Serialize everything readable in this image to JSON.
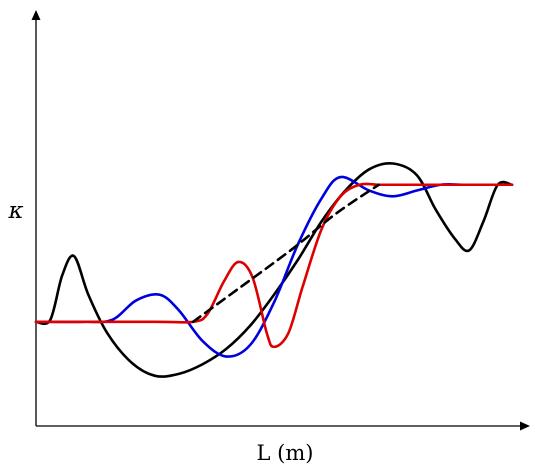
{
  "chart_data": {
    "type": "line",
    "title": "",
    "xlabel": "L (m)",
    "ylabel": "κ",
    "xlim": [
      0,
      10
    ],
    "ylim": [
      0,
      10
    ],
    "grid": false,
    "legend": "none",
    "series": [
      {
        "color": "#000000",
        "dashed": false,
        "x": [
          0.0,
          0.3,
          0.55,
          0.8,
          1.1,
          1.5,
          2.0,
          2.5,
          3.0,
          3.5,
          4.0,
          4.5,
          5.0,
          5.5,
          6.0,
          6.5,
          7.0,
          7.5,
          8.0,
          8.4,
          8.8,
          9.1,
          9.4,
          9.7,
          10.0
        ],
        "y": [
          2.7,
          2.75,
          3.9,
          4.4,
          3.4,
          2.4,
          1.65,
          1.3,
          1.35,
          1.6,
          2.0,
          2.6,
          3.4,
          4.3,
          5.3,
          6.1,
          6.65,
          6.8,
          6.5,
          5.6,
          4.85,
          4.55,
          5.3,
          6.25,
          6.25
        ]
      },
      {
        "color": "#0000dd",
        "dashed": false,
        "x": [
          0.0,
          1.0,
          1.6,
          2.1,
          2.6,
          3.0,
          3.5,
          4.0,
          4.5,
          5.0,
          5.5,
          6.0,
          6.4,
          7.0,
          7.5,
          8.0,
          8.5,
          9.0,
          9.5,
          10.0
        ],
        "y": [
          2.7,
          2.7,
          2.75,
          3.25,
          3.4,
          3.0,
          2.2,
          1.8,
          2.1,
          3.2,
          4.7,
          5.9,
          6.45,
          6.1,
          5.95,
          6.1,
          6.25,
          6.25,
          6.25,
          6.25
        ]
      },
      {
        "color": "#dd0000",
        "dashed": false,
        "x": [
          0.0,
          2.5,
          3.3,
          3.6,
          3.95,
          4.25,
          4.55,
          4.85,
          5.0,
          5.3,
          5.6,
          6.0,
          6.4,
          6.8,
          7.2,
          7.6,
          8.0,
          9.0,
          10.0
        ],
        "y": [
          2.7,
          2.7,
          2.7,
          2.9,
          3.75,
          4.25,
          3.85,
          2.4,
          2.05,
          2.4,
          3.6,
          5.1,
          5.95,
          6.25,
          6.25,
          6.25,
          6.25,
          6.25,
          6.25
        ]
      },
      {
        "color": "#000000",
        "dashed": true,
        "x": [
          3.3,
          4.3,
          5.4,
          6.3,
          7.2
        ],
        "y": [
          2.7,
          3.6,
          4.6,
          5.5,
          6.25
        ]
      }
    ]
  }
}
